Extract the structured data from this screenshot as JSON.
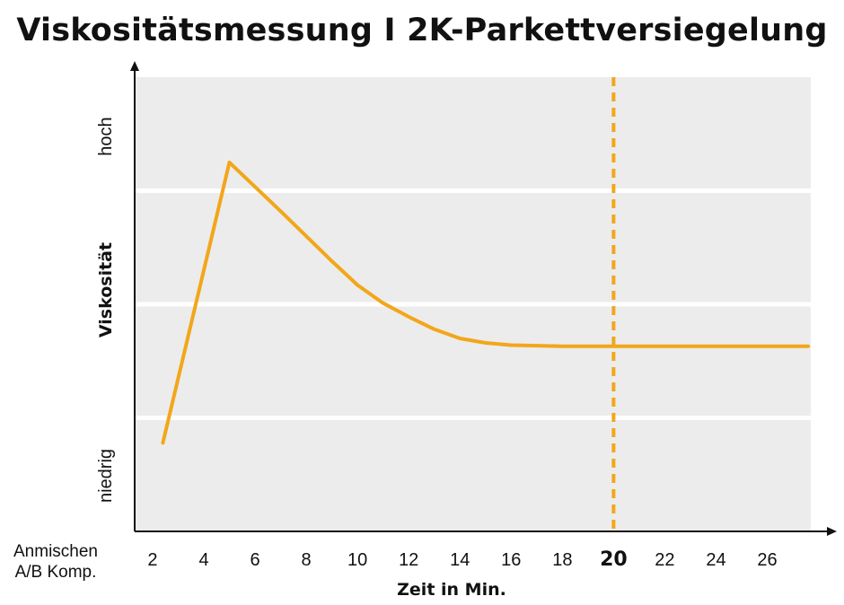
{
  "chart_data": {
    "type": "line",
    "title": "Viskositätsmessung I 2K-Parkettversiegelung",
    "xlabel": "Zeit in Min.",
    "ylabel": "Viskosität",
    "x_start_label": [
      "Anmischen",
      "A/B Komp."
    ],
    "y_level_labels": {
      "low": "niedrig",
      "high": "hoch"
    },
    "xticks": [
      2,
      4,
      6,
      8,
      10,
      12,
      14,
      16,
      18,
      20,
      22,
      24,
      26
    ],
    "highlight_x": 20,
    "highlight_label": "20",
    "xlim": [
      1.3,
      27.7
    ],
    "ylim": [
      0,
      4
    ],
    "grid": "horizontal",
    "series": [
      {
        "x": [
          2.4,
          5,
          7,
          9,
          10,
          11,
          12,
          13,
          14,
          15,
          16,
          18,
          20,
          27.6
        ],
        "y": [
          0.78,
          3.25,
          2.82,
          2.38,
          2.17,
          2.01,
          1.89,
          1.78,
          1.7,
          1.66,
          1.64,
          1.63,
          1.63,
          1.63
        ]
      }
    ],
    "colors": {
      "line": "#f2a61a",
      "plot_bg": "#ececec",
      "grid": "#ffffff",
      "axis": "#111111"
    }
  }
}
